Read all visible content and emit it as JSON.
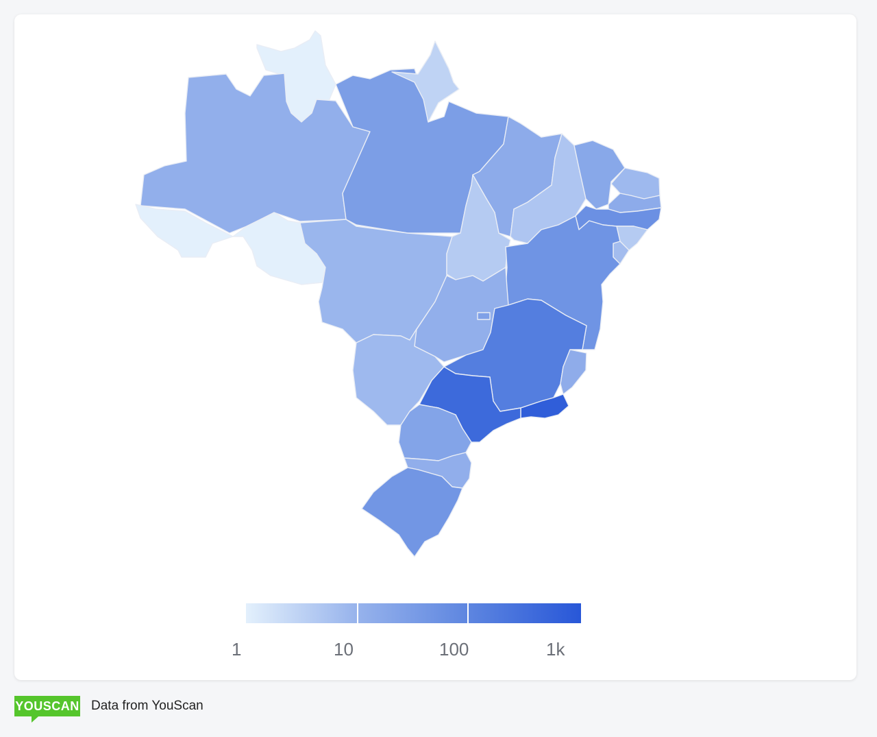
{
  "legend": {
    "ticks": [
      "1",
      "10",
      "100",
      "1k"
    ],
    "colors": [
      "#e3f0fc",
      "#97b3ec",
      "#5e86e0",
      "#2857d8"
    ],
    "scale": "log"
  },
  "footer": {
    "logo_text": "YOUSCAN",
    "source_text": "Data from YouScan"
  },
  "map": {
    "type": "choropleth",
    "region": "Brazil",
    "levels": {
      "roraima": 1,
      "acre": 1,
      "rondonia": 1,
      "amapa": 3,
      "amazonas": 12,
      "para": 30,
      "mato-grosso": 9,
      "maranhao": 15,
      "piaui": 5,
      "tocantins": 4,
      "ceara": 18,
      "rio-grande-do-norte": 8,
      "paraiba": 15,
      "pernambuco": 60,
      "alagoas": 4,
      "sergipe": 7,
      "bahia": 50,
      "goias": 12,
      "distrito-federal": 25,
      "mato-grosso-do-sul": 8,
      "minas-gerais": 150,
      "espirito-santo": 14,
      "rio-de-janeiro": 700,
      "sao-paulo": 400,
      "parana": 22,
      "santa-catarina": 13,
      "rio-grande-do-sul": 45
    }
  }
}
